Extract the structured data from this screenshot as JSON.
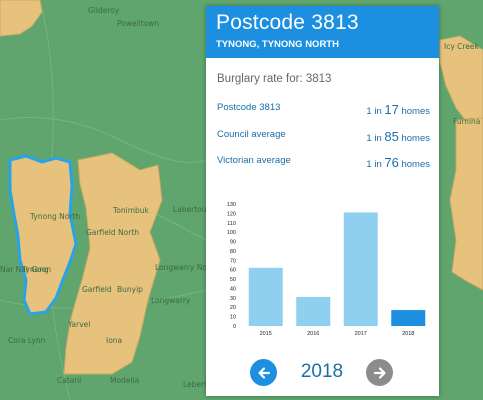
{
  "map": {
    "labels": [
      "Gilderoy",
      "Powelltown",
      "Icy Creek",
      "Fumina S",
      "Labertouche",
      "Tonimbuk",
      "Garfield North",
      "Tynong North",
      "Tynong",
      "Garfield",
      "Bunyip",
      "Longwarry North",
      "Longwarry",
      "Yarvel",
      "Nar Nar Goon",
      "Iona",
      "Modella",
      "Catani",
      "Cora Lynn",
      "Lebertt"
    ]
  },
  "panel": {
    "postcode_title": "Postcode  3813",
    "suburbs": "TYNONG, TYNONG NORTH",
    "rate_heading": "Burglary rate for: 3813",
    "stats": [
      {
        "label": "Postcode 3813",
        "prefix": "1 in ",
        "number": "17",
        "suffix": " homes"
      },
      {
        "label": "Council average",
        "prefix": "1 in ",
        "number": "85",
        "suffix": " homes"
      },
      {
        "label": "Victorian average",
        "prefix": "1 in ",
        "number": "76",
        "suffix": " homes"
      }
    ],
    "year": "2018"
  },
  "colors": {
    "header": "#1d8fe0",
    "bar_normal": "#8fd0f0",
    "bar_selected": "#1d8fe0",
    "prev_button": "#1d8fe0",
    "next_button": "#8c8c8c",
    "map_green": "#5fa56d",
    "map_tan": "#e7c27c",
    "boundary_selected": "#29a3e8"
  },
  "icons": {
    "prev": "arrow-left-icon",
    "next": "arrow-right-icon"
  },
  "chart_data": {
    "type": "bar",
    "categories": [
      "2015",
      "2016",
      "2017",
      "2018"
    ],
    "values": [
      62,
      31,
      121,
      17
    ],
    "selected_category": "2018",
    "ylim": [
      0,
      130
    ],
    "yticks": [
      "0",
      "10",
      "20",
      "30",
      "40",
      "50",
      "60",
      "70",
      "80",
      "90",
      "100",
      "110",
      "120",
      "130"
    ],
    "grid": false,
    "title": "",
    "xlabel": "",
    "ylabel": ""
  }
}
